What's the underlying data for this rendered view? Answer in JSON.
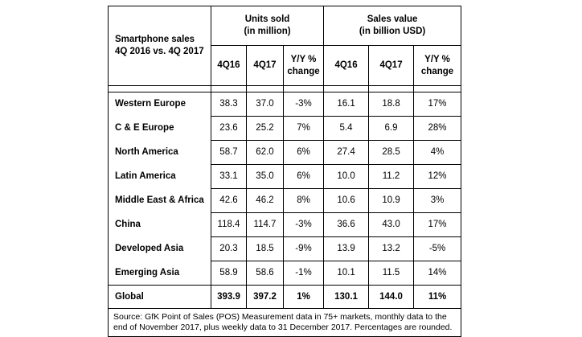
{
  "table": {
    "title_line1": "Smartphone sales",
    "title_line2": "4Q 2016 vs. 4Q 2017",
    "groups": [
      {
        "line1": "Units sold",
        "line2": "(in million)"
      },
      {
        "line1": "Sales value",
        "line2": "(in billion USD)"
      }
    ],
    "subheaders": [
      "4Q16",
      "4Q17",
      "Y/Y %",
      "change",
      "4Q16",
      "4Q17",
      "Y/Y %",
      "change"
    ],
    "rows": [
      {
        "region": "Western Europe",
        "u16": "38.3",
        "u17": "37.0",
        "uyy": "-3%",
        "v16": "16.1",
        "v17": "18.8",
        "vyy": "17%"
      },
      {
        "region": "C & E Europe",
        "u16": "23.6",
        "u17": "25.2",
        "uyy": "7%",
        "v16": "5.4",
        "v17": "6.9",
        "vyy": "28%"
      },
      {
        "region": "North America",
        "u16": "58.7",
        "u17": "62.0",
        "uyy": "6%",
        "v16": "27.4",
        "v17": "28.5",
        "vyy": "4%"
      },
      {
        "region": "Latin America",
        "u16": "33.1",
        "u17": "35.0",
        "uyy": "6%",
        "v16": "10.0",
        "v17": "11.2",
        "vyy": "12%"
      },
      {
        "region": "Middle East & Africa",
        "u16": "42.6",
        "u17": "46.2",
        "uyy": "8%",
        "v16": "10.6",
        "v17": "10.9",
        "vyy": "3%"
      },
      {
        "region": "China",
        "u16": "118.4",
        "u17": "114.7",
        "uyy": "-3%",
        "v16": "36.6",
        "v17": "43.0",
        "vyy": "17%"
      },
      {
        "region": "Developed Asia",
        "u16": "20.3",
        "u17": "18.5",
        "uyy": "-9%",
        "v16": "13.9",
        "v17": "13.2",
        "vyy": "-5%"
      },
      {
        "region": "Emerging Asia",
        "u16": "58.9",
        "u17": "58.6",
        "uyy": "-1%",
        "v16": "10.1",
        "v17": "11.5",
        "vyy": "14%"
      }
    ],
    "global": {
      "region": "Global",
      "u16": "393.9",
      "u17": "397.2",
      "uyy": "1%",
      "v16": "130.1",
      "v17": "144.0",
      "vyy": "11%"
    },
    "source_line1": "Source: GfK Point of Sales (POS) Measurement data in 75+ markets, monthly data to the",
    "source_line2": "end of November 2017, plus weekly data to 31 December 2017. Percentages are rounded."
  }
}
